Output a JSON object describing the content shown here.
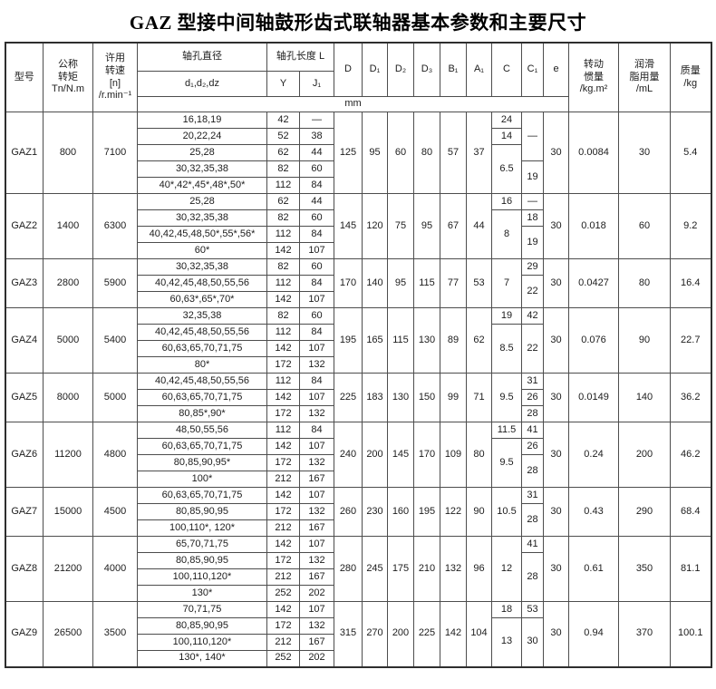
{
  "page": {
    "title": "GAZ 型接中间轴鼓形齿式联轴器基本参数和主要尺寸"
  },
  "table": {
    "headers": {
      "model": "型号",
      "torque": "公称\n转矩\nTn/N.m",
      "speed": "许用\n转速\n[n]\n/r.min⁻¹",
      "bore_dia": "轴孔直径",
      "bore_dia_sub": "d₁,d₂,dz",
      "bore_len": "轴孔长度 L",
      "bore_len_y": "Y",
      "bore_len_j1": "J₁",
      "dims": [
        "D",
        "D₁",
        "D₂",
        "D₃",
        "B₁",
        "A₁",
        "C",
        "C₁",
        "e"
      ],
      "inertia": "转动\n惯量\n/kg.m²",
      "grease": "润滑\n脂用量\n/mL",
      "mass": "质量\n/kg",
      "unit": "mm"
    },
    "groups": [
      {
        "model": "GAZ1",
        "torque": "800",
        "speed": "7100",
        "rows": [
          {
            "bores": "16,18,19",
            "Y": "42",
            "J1": "—"
          },
          {
            "bores": "20,22,24",
            "Y": "52",
            "J1": "38"
          },
          {
            "bores": "25,28",
            "Y": "62",
            "J1": "44"
          },
          {
            "bores": "30,32,35,38",
            "Y": "82",
            "J1": "60"
          },
          {
            "bores": "40*,42*,45*,48*,50*",
            "Y": "112",
            "J1": "84"
          }
        ],
        "D": "125",
        "D1": "95",
        "D2": "60",
        "D3": "80",
        "B1": "57",
        "A1": "37",
        "C": [
          [
            "24",
            1
          ],
          [
            "14",
            1
          ],
          [
            "6.5",
            3
          ]
        ],
        "C1": [
          [
            "—",
            3
          ],
          [
            "19",
            2
          ]
        ],
        "e": "30",
        "inertia": "0.0084",
        "grease": "30",
        "mass": "5.4"
      },
      {
        "model": "GAZ2",
        "torque": "1400",
        "speed": "6300",
        "rows": [
          {
            "bores": "25,28",
            "Y": "62",
            "J1": "44"
          },
          {
            "bores": "30,32,35,38",
            "Y": "82",
            "J1": "60"
          },
          {
            "bores": "40,42,45,48,50*,55*,56*",
            "Y": "112",
            "J1": "84"
          },
          {
            "bores": "60*",
            "Y": "142",
            "J1": "107"
          }
        ],
        "D": "145",
        "D1": "120",
        "D2": "75",
        "D3": "95",
        "B1": "67",
        "A1": "44",
        "C": [
          [
            "16",
            1
          ],
          [
            "8",
            3
          ]
        ],
        "C1": [
          [
            "—",
            1
          ],
          [
            "18",
            1
          ],
          [
            "19",
            2
          ]
        ],
        "e": "30",
        "inertia": "0.018",
        "grease": "60",
        "mass": "9.2"
      },
      {
        "model": "GAZ3",
        "torque": "2800",
        "speed": "5900",
        "rows": [
          {
            "bores": "30,32,35,38",
            "Y": "82",
            "J1": "60"
          },
          {
            "bores": "40,42,45,48,50,55,56",
            "Y": "112",
            "J1": "84"
          },
          {
            "bores": "60,63*,65*,70*",
            "Y": "142",
            "J1": "107"
          }
        ],
        "D": "170",
        "D1": "140",
        "D2": "95",
        "D3": "115",
        "B1": "77",
        "A1": "53",
        "C": [
          [
            "7",
            3
          ]
        ],
        "C1": [
          [
            "29",
            1
          ],
          [
            "22",
            2
          ]
        ],
        "e": "30",
        "inertia": "0.0427",
        "grease": "80",
        "mass": "16.4"
      },
      {
        "model": "GAZ4",
        "torque": "5000",
        "speed": "5400",
        "rows": [
          {
            "bores": "32,35,38",
            "Y": "82",
            "J1": "60"
          },
          {
            "bores": "40,42,45,48,50,55,56",
            "Y": "112",
            "J1": "84"
          },
          {
            "bores": "60,63,65,70,71,75",
            "Y": "142",
            "J1": "107"
          },
          {
            "bores": "80*",
            "Y": "172",
            "J1": "132"
          }
        ],
        "D": "195",
        "D1": "165",
        "D2": "115",
        "D3": "130",
        "B1": "89",
        "A1": "62",
        "C": [
          [
            "19",
            1
          ],
          [
            "8.5",
            3
          ]
        ],
        "C1": [
          [
            "42",
            1
          ],
          [
            "22",
            3
          ]
        ],
        "e": "30",
        "inertia": "0.076",
        "grease": "90",
        "mass": "22.7"
      },
      {
        "model": "GAZ5",
        "torque": "8000",
        "speed": "5000",
        "rows": [
          {
            "bores": "40,42,45,48,50,55,56",
            "Y": "112",
            "J1": "84"
          },
          {
            "bores": "60,63,65,70,71,75",
            "Y": "142",
            "J1": "107"
          },
          {
            "bores": "80,85*,90*",
            "Y": "172",
            "J1": "132"
          }
        ],
        "D": "225",
        "D1": "183",
        "D2": "130",
        "D3": "150",
        "B1": "99",
        "A1": "71",
        "C": [
          [
            "9.5",
            3
          ]
        ],
        "C1": [
          [
            "31",
            1
          ],
          [
            "26",
            1
          ],
          [
            "28",
            1
          ]
        ],
        "e": "30",
        "inertia": "0.0149",
        "grease": "140",
        "mass": "36.2"
      },
      {
        "model": "GAZ6",
        "torque": "11200",
        "speed": "4800",
        "rows": [
          {
            "bores": "48,50,55,56",
            "Y": "112",
            "J1": "84"
          },
          {
            "bores": "60,63,65,70,71,75",
            "Y": "142",
            "J1": "107"
          },
          {
            "bores": "80,85,90,95*",
            "Y": "172",
            "J1": "132"
          },
          {
            "bores": "100*",
            "Y": "212",
            "J1": "167"
          }
        ],
        "D": "240",
        "D1": "200",
        "D2": "145",
        "D3": "170",
        "B1": "109",
        "A1": "80",
        "C": [
          [
            "11.5",
            1
          ],
          [
            "9.5",
            3
          ]
        ],
        "C1": [
          [
            "41",
            1
          ],
          [
            "26",
            1
          ],
          [
            "28",
            2
          ]
        ],
        "e": "30",
        "inertia": "0.24",
        "grease": "200",
        "mass": "46.2"
      },
      {
        "model": "GAZ7",
        "torque": "15000",
        "speed": "4500",
        "rows": [
          {
            "bores": "60,63,65,70,71,75",
            "Y": "142",
            "J1": "107"
          },
          {
            "bores": "80,85,90,95",
            "Y": "172",
            "J1": "132"
          },
          {
            "bores": "100,110*, 120*",
            "Y": "212",
            "J1": "167"
          }
        ],
        "D": "260",
        "D1": "230",
        "D2": "160",
        "D3": "195",
        "B1": "122",
        "A1": "90",
        "C": [
          [
            "10.5",
            3
          ]
        ],
        "C1": [
          [
            "31",
            1
          ],
          [
            "28",
            2
          ]
        ],
        "e": "30",
        "inertia": "0.43",
        "grease": "290",
        "mass": "68.4"
      },
      {
        "model": "GAZ8",
        "torque": "21200",
        "speed": "4000",
        "rows": [
          {
            "bores": "65,70,71,75",
            "Y": "142",
            "J1": "107"
          },
          {
            "bores": "80,85,90,95",
            "Y": "172",
            "J1": "132"
          },
          {
            "bores": "100,110,120*",
            "Y": "212",
            "J1": "167"
          },
          {
            "bores": "130*",
            "Y": "252",
            "J1": "202"
          }
        ],
        "D": "280",
        "D1": "245",
        "D2": "175",
        "D3": "210",
        "B1": "132",
        "A1": "96",
        "C": [
          [
            "12",
            4
          ]
        ],
        "C1": [
          [
            "41",
            1
          ],
          [
            "28",
            3
          ]
        ],
        "e": "30",
        "inertia": "0.61",
        "grease": "350",
        "mass": "81.1"
      },
      {
        "model": "GAZ9",
        "torque": "26500",
        "speed": "3500",
        "rows": [
          {
            "bores": "70,71,75",
            "Y": "142",
            "J1": "107"
          },
          {
            "bores": "80,85,90,95",
            "Y": "172",
            "J1": "132"
          },
          {
            "bores": "100,110,120*",
            "Y": "212",
            "J1": "167"
          },
          {
            "bores": "130*, 140*",
            "Y": "252",
            "J1": "202"
          }
        ],
        "D": "315",
        "D1": "270",
        "D2": "200",
        "D3": "225",
        "B1": "142",
        "A1": "104",
        "C": [
          [
            "18",
            1
          ],
          [
            "13",
            3
          ]
        ],
        "C1": [
          [
            "53",
            1
          ],
          [
            "30",
            3
          ]
        ],
        "e": "30",
        "inertia": "0.94",
        "grease": "370",
        "mass": "100.1"
      }
    ]
  }
}
